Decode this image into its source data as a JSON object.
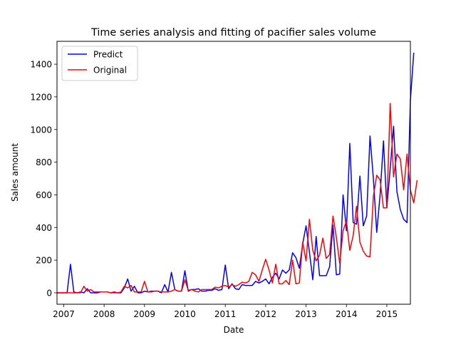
{
  "chart_data": {
    "type": "line",
    "title": "Time series analysis and fitting of pacifier sales volume",
    "xlabel": "Date",
    "ylabel": "Sales amount",
    "x_start": "2006-11",
    "x_end": "2015-08",
    "xlim": [
      "2006-11",
      "2015-08"
    ],
    "ylim": [
      -70,
      1540
    ],
    "x_ticks": [
      {
        "value": "2007-01",
        "label": "2007"
      },
      {
        "value": "2008-01",
        "label": "2008"
      },
      {
        "value": "2009-01",
        "label": "2009"
      },
      {
        "value": "2010-01",
        "label": "2010"
      },
      {
        "value": "2011-01",
        "label": "2011"
      },
      {
        "value": "2012-01",
        "label": "2012"
      },
      {
        "value": "2013-01",
        "label": "2013"
      },
      {
        "value": "2014-01",
        "label": "2014"
      },
      {
        "value": "2015-01",
        "label": "2015"
      }
    ],
    "y_ticks": [
      0,
      200,
      400,
      600,
      800,
      1000,
      1200,
      1400
    ],
    "grid": false,
    "legend": "top-left",
    "series": [
      {
        "name": "Predict",
        "color": "#0000ff",
        "values": [
          0,
          0,
          0,
          0,
          175,
          5,
          0,
          5,
          0,
          25,
          0,
          0,
          0,
          5,
          5,
          5,
          0,
          5,
          0,
          0,
          30,
          85,
          10,
          40,
          0,
          0,
          10,
          5,
          10,
          10,
          10,
          0,
          50,
          5,
          125,
          20,
          10,
          10,
          135,
          10,
          20,
          20,
          25,
          10,
          10,
          15,
          15,
          25,
          15,
          20,
          170,
          25,
          55,
          25,
          20,
          50,
          45,
          45,
          45,
          70,
          60,
          70,
          85,
          55,
          95,
          120,
          85,
          140,
          120,
          140,
          245,
          215,
          150,
          300,
          410,
          250,
          80,
          345,
          105,
          105,
          105,
          160,
          415,
          110,
          115,
          600,
          380,
          915,
          430,
          420,
          715,
          410,
          470,
          960,
          700,
          370,
          600,
          930,
          520,
          760,
          1020,
          620,
          510,
          450,
          430,
          1180,
          1470
        ],
        "x_start": "2006-11"
      },
      {
        "name": "Original",
        "color": "#ff0000",
        "values": [
          0,
          0,
          0,
          0,
          0,
          0,
          0,
          0,
          40,
          10,
          20,
          5,
          5,
          5,
          5,
          5,
          0,
          0,
          0,
          5,
          40,
          30,
          45,
          5,
          5,
          5,
          70,
          5,
          5,
          10,
          10,
          5,
          5,
          5,
          10,
          20,
          10,
          10,
          80,
          15,
          20,
          10,
          5,
          20,
          20,
          20,
          20,
          35,
          30,
          40,
          45,
          35,
          50,
          40,
          50,
          65,
          60,
          70,
          125,
          110,
          70,
          140,
          205,
          140,
          60,
          175,
          55,
          55,
          75,
          50,
          200,
          55,
          60,
          310,
          195,
          450,
          260,
          195,
          230,
          335,
          210,
          235,
          470,
          340,
          180,
          380,
          440,
          260,
          350,
          530,
          310,
          255,
          225,
          220,
          590,
          720,
          690,
          520,
          520,
          1160,
          710,
          850,
          820,
          630,
          850,
          630,
          550,
          690
        ],
        "x_start": "2006-11"
      }
    ]
  }
}
